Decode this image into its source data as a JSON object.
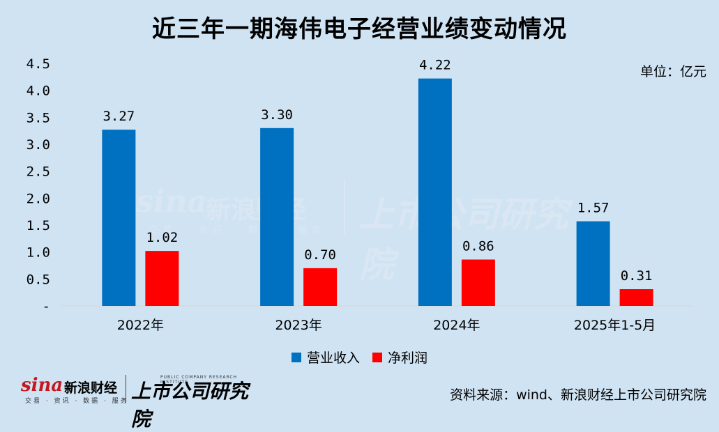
{
  "title": "近三年一期海伟电子经营业绩变动情况",
  "unit_label": "单位：亿元",
  "source_label": "资料来源：wind、新浪财经上市公司研究院",
  "watermark": {
    "brand": "sina",
    "brand_cn": "新浪财经",
    "sub": "交易 · 资讯 · 数据 · 服务",
    "institute": "上市公司研究院"
  },
  "logo": {
    "brand": "sina",
    "brand_cn": "新浪财经",
    "sub": "交易 · 资讯 · 数据 · 服务",
    "institute": "上市公司研究院",
    "institute_en": "PUBLIC COMPANY RESEARCH INSTITUTE"
  },
  "colors": {
    "revenue": "#0070c0",
    "profit": "#ff0000",
    "axis": "#d9d9d9"
  },
  "chart_data": {
    "type": "bar",
    "title": "近三年一期海伟电子经营业绩变动情况",
    "categories": [
      "2022年",
      "2023年",
      "2024年",
      "2025年1-5月"
    ],
    "series": [
      {
        "name": "营业收入",
        "values": [
          3.27,
          3.3,
          4.22,
          1.57
        ],
        "labels": [
          "3.27",
          "3.30",
          "4.22",
          "1.57"
        ]
      },
      {
        "name": "净利润",
        "values": [
          1.02,
          0.7,
          0.86,
          0.31
        ],
        "labels": [
          "1.02",
          "0.70",
          "0.86",
          "0.31"
        ]
      }
    ],
    "ylim": [
      0,
      4.5
    ],
    "yticks": [
      "-",
      "0.5",
      "1.0",
      "1.5",
      "2.0",
      "2.5",
      "3.0",
      "3.5",
      "4.0",
      "4.5"
    ],
    "grid": false,
    "legend": "bottom",
    "xlabel": "",
    "ylabel": ""
  }
}
